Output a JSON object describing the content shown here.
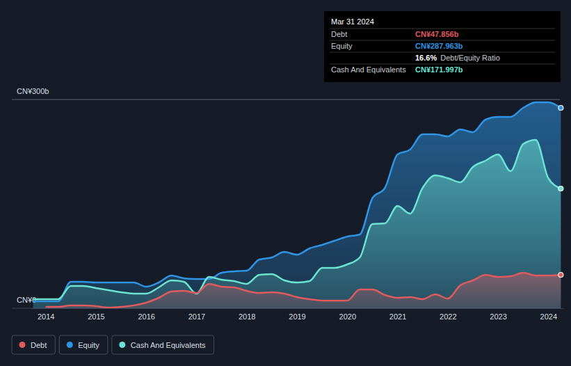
{
  "chart_data": {
    "type": "area",
    "x": [
      2013.75,
      2014.0,
      2014.25,
      2014.5,
      2014.75,
      2015.0,
      2015.25,
      2015.5,
      2015.75,
      2016.0,
      2016.25,
      2016.5,
      2016.75,
      2017.0,
      2017.25,
      2017.5,
      2017.75,
      2018.0,
      2018.25,
      2018.5,
      2018.75,
      2019.0,
      2019.25,
      2019.5,
      2019.75,
      2020.0,
      2020.25,
      2020.5,
      2020.75,
      2021.0,
      2021.25,
      2021.5,
      2021.75,
      2022.0,
      2022.25,
      2022.5,
      2022.75,
      2023.0,
      2023.25,
      2023.5,
      2023.75,
      2024.0,
      2024.25
    ],
    "xlim": [
      2013.7,
      2024.3
    ],
    "xticks": [
      2014,
      2015,
      2016,
      2017,
      2018,
      2019,
      2020,
      2021,
      2022,
      2023,
      2024
    ],
    "ylim": [
      0,
      300
    ],
    "yticks": [
      {
        "value": 0,
        "label": "CN¥0"
      },
      {
        "value": 300,
        "label": "CN¥300b"
      }
    ],
    "grid": true,
    "legend": "bottom-left",
    "series": [
      {
        "name": "Debt",
        "color": "#e05a5e",
        "values": [
          null,
          2,
          2,
          4,
          4,
          3,
          1,
          2,
          4,
          8,
          15,
          24,
          25,
          22,
          35,
          31,
          30,
          25,
          22,
          23,
          21,
          16,
          13,
          11,
          11,
          11,
          27,
          27,
          19,
          15,
          16,
          13,
          20,
          14,
          33,
          40,
          48,
          45,
          46,
          51,
          47,
          47,
          48
        ]
      },
      {
        "name": "Equity",
        "color": "#2f94e3",
        "values": [
          10,
          10,
          10,
          38,
          38,
          37,
          37,
          37,
          37,
          31,
          37,
          47,
          43,
          42,
          42,
          51,
          53,
          54,
          70,
          73,
          81,
          77,
          86,
          91,
          97,
          103,
          106,
          158,
          173,
          221,
          228,
          250,
          250,
          247,
          257,
          253,
          271,
          275,
          275,
          288,
          296,
          296,
          288
        ]
      },
      {
        "name": "Cash And Equivalents",
        "color": "#6be3d2",
        "values": [
          13,
          13,
          13,
          32,
          32,
          29,
          26,
          23,
          21,
          21,
          30,
          40,
          38,
          21,
          45,
          41,
          39,
          35,
          48,
          49,
          40,
          37,
          39,
          58,
          58,
          63,
          73,
          121,
          122,
          147,
          136,
          173,
          191,
          187,
          181,
          203,
          212,
          221,
          197,
          236,
          242,
          187,
          172
        ]
      }
    ],
    "tooltip": {
      "title": "Mar 31 2024",
      "rows": [
        {
          "label": "Debt",
          "value": "CN¥47.856b"
        },
        {
          "label": "Equity",
          "value": "CN¥287.963b"
        },
        {
          "label": "Debt/Equity Ratio",
          "value": "16.6%"
        },
        {
          "label": "Cash And Equivalents",
          "value": "CN¥171.997b"
        }
      ]
    }
  }
}
